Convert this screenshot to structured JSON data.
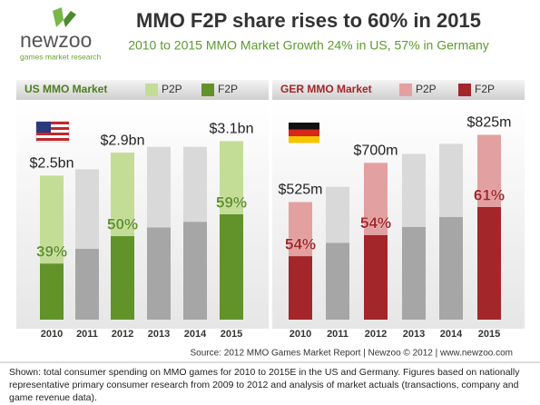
{
  "logo": {
    "name": "newzoo",
    "tagline": "games market research"
  },
  "title": "MMO F2P share rises to 60% in 2015",
  "subtitle": "2010 to 2015 MMO Market Growth 24% in US, 57% in Germany",
  "chart_data": [
    {
      "type": "bar",
      "title": "US MMO Market",
      "categories": [
        "2010",
        "2011",
        "2012",
        "2013",
        "2014",
        "2015"
      ],
      "ylim": [
        0,
        3.5
      ],
      "series": [
        {
          "name": "P2P",
          "color": "#c3dd97",
          "colors": [
            "#c3dd97",
            "#d9d9d9",
            "#c3dd97",
            "#d9d9d9",
            "#d9d9d9",
            "#c3dd97"
          ],
          "values": [
            1.525,
            1.38,
            1.45,
            1.4,
            1.3,
            1.27
          ]
        },
        {
          "name": "F2P",
          "color": "#62922a",
          "colors": [
            "#62922a",
            "#a6a6a6",
            "#62922a",
            "#a6a6a6",
            "#a6a6a6",
            "#62922a"
          ],
          "values": [
            0.975,
            1.23,
            1.45,
            1.6,
            1.7,
            1.83
          ]
        }
      ],
      "totals": [
        2.5,
        null,
        2.9,
        null,
        null,
        3.1
      ],
      "total_labels": [
        "$2.5bn",
        null,
        "$2.9bn",
        null,
        null,
        "$3.1bn"
      ],
      "shares": [
        39,
        null,
        50,
        null,
        null,
        59
      ],
      "share_labels": [
        "39%",
        null,
        "50%",
        null,
        null,
        "59%"
      ]
    },
    {
      "type": "bar",
      "title": "GER MMO Market",
      "categories": [
        "2010",
        "2011",
        "2012",
        "2013",
        "2014",
        "2015"
      ],
      "ylim": [
        0,
        900
      ],
      "series": [
        {
          "name": "P2P",
          "color": "#e3a0a0",
          "colors": [
            "#e3a0a0",
            "#d9d9d9",
            "#e3a0a0",
            "#d9d9d9",
            "#d9d9d9",
            "#e3a0a0"
          ],
          "values": [
            241.5,
            250,
            322,
            326,
            327,
            322
          ]
        },
        {
          "name": "F2P",
          "color": "#a3262a",
          "colors": [
            "#a3262a",
            "#a6a6a6",
            "#a3262a",
            "#a6a6a6",
            "#a6a6a6",
            "#a3262a"
          ],
          "values": [
            283.5,
            343,
            378,
            414,
            458,
            503
          ]
        }
      ],
      "totals": [
        525,
        null,
        700,
        null,
        null,
        825
      ],
      "total_labels": [
        "$525m",
        null,
        "$700m",
        null,
        null,
        "$825m"
      ],
      "shares": [
        54,
        null,
        54,
        null,
        null,
        61
      ],
      "share_labels": [
        "54%",
        null,
        "54%",
        null,
        null,
        "61%"
      ]
    }
  ],
  "source": "Source: 2012 MMO Games Market Report | Newzoo © 2012 | www.newzoo.com",
  "note": "Shown: total consumer spending on MMO games for 2010 to 2015E in the US and Germany. Figures based on nationally representative primary consumer research from 2009 to 2012 and analysis of market actuals (transactions, company and game revenue data)."
}
